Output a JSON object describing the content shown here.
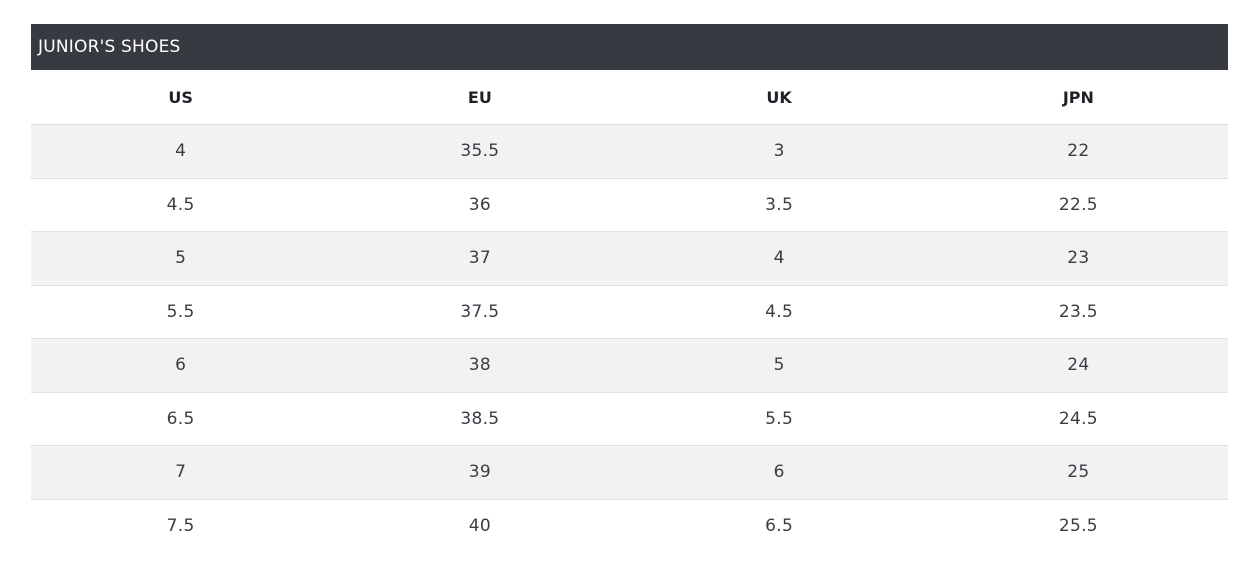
{
  "table": {
    "title": "JUNIOR'S SHOES",
    "columns": [
      "US",
      "EU",
      "UK",
      "JPN"
    ],
    "rows": [
      [
        "4",
        "35.5",
        "3",
        "22"
      ],
      [
        "4.5",
        "36",
        "3.5",
        "22.5"
      ],
      [
        "5",
        "37",
        "4",
        "23"
      ],
      [
        "5.5",
        "37.5",
        "4.5",
        "23.5"
      ],
      [
        "6",
        "38",
        "5",
        "24"
      ],
      [
        "6.5",
        "38.5",
        "5.5",
        "24.5"
      ],
      [
        "7",
        "39",
        "6",
        "25"
      ],
      [
        "7.5",
        "40",
        "6.5",
        "25.5"
      ]
    ]
  },
  "colors": {
    "title_bar_bg": "#373a41",
    "stripe_bg": "#f2f2f2",
    "row_bg": "#ffffff"
  }
}
